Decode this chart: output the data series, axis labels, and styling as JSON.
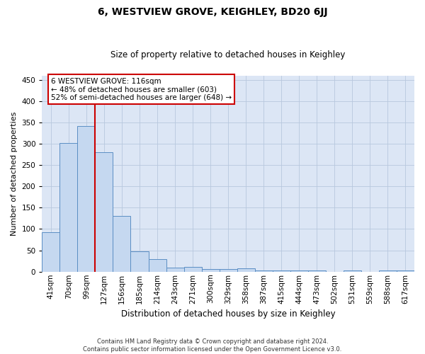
{
  "title": "6, WESTVIEW GROVE, KEIGHLEY, BD20 6JJ",
  "subtitle": "Size of property relative to detached houses in Keighley",
  "xlabel": "Distribution of detached houses by size in Keighley",
  "ylabel": "Number of detached properties",
  "footnote1": "Contains HM Land Registry data © Crown copyright and database right 2024.",
  "footnote2": "Contains public sector information licensed under the Open Government Licence v3.0.",
  "bar_labels": [
    "41sqm",
    "70sqm",
    "99sqm",
    "127sqm",
    "156sqm",
    "185sqm",
    "214sqm",
    "243sqm",
    "271sqm",
    "300sqm",
    "329sqm",
    "358sqm",
    "387sqm",
    "415sqm",
    "444sqm",
    "473sqm",
    "502sqm",
    "531sqm",
    "559sqm",
    "588sqm",
    "617sqm"
  ],
  "bar_values": [
    93,
    302,
    341,
    280,
    130,
    47,
    30,
    9,
    11,
    7,
    6,
    8,
    3,
    3,
    3,
    3,
    0,
    3,
    0,
    3,
    3
  ],
  "bar_color": "#c5d8f0",
  "bar_edge_color": "#5b8ec4",
  "bg_color": "#dce6f5",
  "vline_color": "#cc0000",
  "annotation_text": "6 WESTVIEW GROVE: 116sqm\n← 48% of detached houses are smaller (603)\n52% of semi-detached houses are larger (648) →",
  "annotation_box_color": "#ffffff",
  "annotation_box_edge": "#cc0000",
  "ylim": [
    0,
    460
  ],
  "yticks": [
    0,
    50,
    100,
    150,
    200,
    250,
    300,
    350,
    400,
    450
  ],
  "title_fontsize": 10,
  "subtitle_fontsize": 8.5,
  "ylabel_fontsize": 8,
  "xlabel_fontsize": 8.5,
  "tick_fontsize": 7.5,
  "annot_fontsize": 7.5
}
